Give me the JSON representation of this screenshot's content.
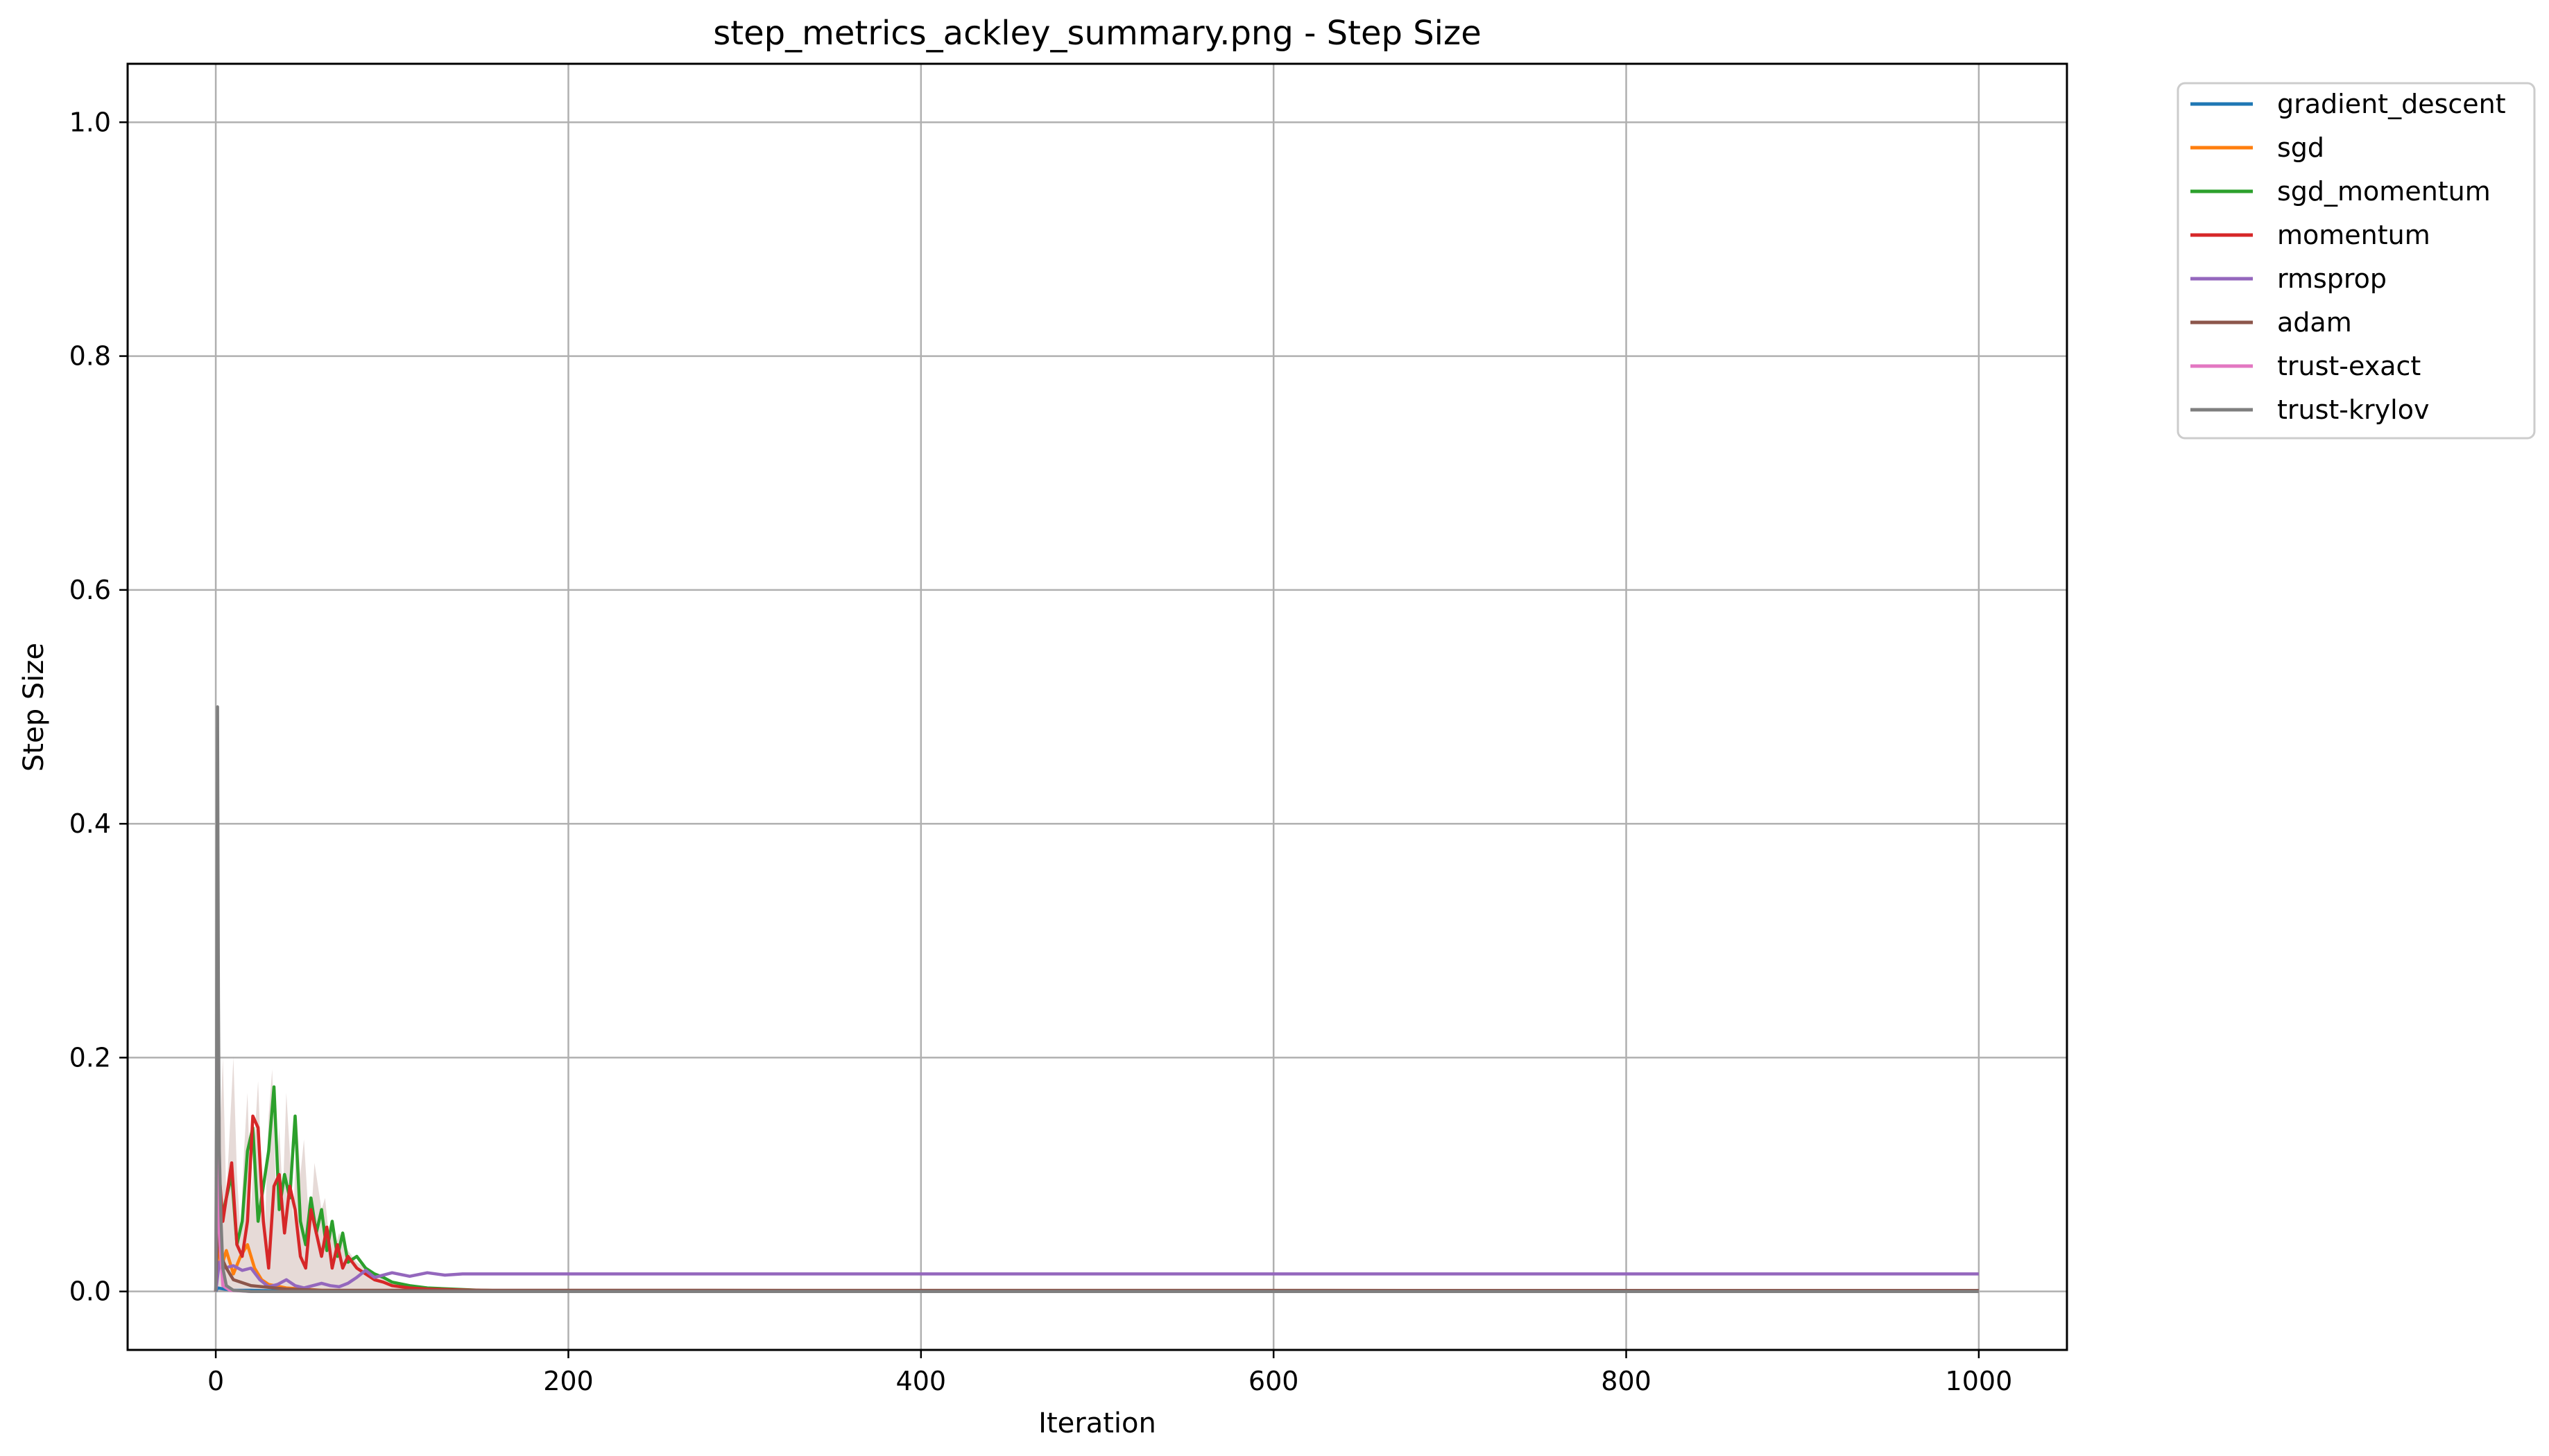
{
  "chart_data": {
    "type": "line",
    "title": "step_metrics_ackley_summary.png - Step Size",
    "xlabel": "Iteration",
    "ylabel": "Step Size",
    "xlim": [
      -50,
      1050
    ],
    "ylim": [
      -0.05,
      1.05
    ],
    "xticks": [
      0,
      200,
      400,
      600,
      800,
      1000
    ],
    "yticks": [
      0.0,
      0.2,
      0.4,
      0.6,
      0.8,
      1.0
    ],
    "xtick_labels": [
      "0",
      "200",
      "400",
      "600",
      "800",
      "1000"
    ],
    "ytick_labels": [
      "0.0",
      "0.2",
      "0.4",
      "0.6",
      "0.8",
      "1.0"
    ],
    "grid": true,
    "legend_position": "outside-top-right",
    "series": [
      {
        "name": "gradient_descent",
        "color": "#1f77b4",
        "x": [
          0,
          1,
          5,
          10,
          20,
          50,
          100,
          1000
        ],
        "y": [
          0.0,
          0.003,
          0.002,
          0.001,
          0.001,
          0.0,
          0.0,
          0.0
        ]
      },
      {
        "name": "sgd",
        "color": "#ff7f0e",
        "x": [
          0,
          1,
          3,
          6,
          10,
          14,
          18,
          22,
          26,
          30,
          40,
          60,
          100,
          1000
        ],
        "y": [
          0.0,
          0.05,
          0.02,
          0.035,
          0.015,
          0.03,
          0.04,
          0.02,
          0.01,
          0.006,
          0.003,
          0.001,
          0.0,
          0.0
        ]
      },
      {
        "name": "sgd_momentum",
        "color": "#2ca02c",
        "x": [
          0,
          1,
          3,
          6,
          9,
          12,
          15,
          18,
          21,
          24,
          27,
          30,
          33,
          36,
          39,
          42,
          45,
          48,
          51,
          54,
          57,
          60,
          63,
          66,
          69,
          72,
          75,
          80,
          85,
          90,
          95,
          100,
          110,
          120,
          150,
          200,
          1000
        ],
        "y": [
          0.0,
          0.09,
          0.06,
          0.08,
          0.1,
          0.04,
          0.06,
          0.12,
          0.14,
          0.06,
          0.09,
          0.12,
          0.175,
          0.07,
          0.1,
          0.08,
          0.15,
          0.06,
          0.04,
          0.08,
          0.05,
          0.07,
          0.035,
          0.06,
          0.03,
          0.05,
          0.025,
          0.03,
          0.02,
          0.015,
          0.012,
          0.008,
          0.005,
          0.003,
          0.001,
          0.0,
          0.0
        ]
      },
      {
        "name": "momentum",
        "color": "#d62728",
        "x": [
          0,
          2,
          4,
          6,
          9,
          12,
          15,
          18,
          21,
          24,
          27,
          30,
          33,
          36,
          39,
          42,
          45,
          48,
          51,
          54,
          57,
          60,
          63,
          66,
          69,
          72,
          75,
          80,
          85,
          90,
          95,
          100,
          110,
          120,
          150,
          200,
          1000
        ],
        "y": [
          0.0,
          0.1,
          0.06,
          0.08,
          0.11,
          0.04,
          0.03,
          0.06,
          0.15,
          0.14,
          0.06,
          0.02,
          0.09,
          0.1,
          0.05,
          0.09,
          0.07,
          0.03,
          0.02,
          0.07,
          0.05,
          0.03,
          0.055,
          0.02,
          0.04,
          0.02,
          0.03,
          0.02,
          0.015,
          0.01,
          0.008,
          0.005,
          0.003,
          0.002,
          0.001,
          0.0,
          0.0
        ]
      },
      {
        "name": "rmsprop",
        "color": "#9467bd",
        "x": [
          0,
          2,
          5,
          10,
          15,
          20,
          25,
          30,
          35,
          40,
          45,
          50,
          55,
          60,
          65,
          70,
          75,
          80,
          85,
          90,
          95,
          100,
          110,
          120,
          130,
          140,
          160,
          200,
          400,
          600,
          800,
          1000
        ],
        "y": [
          0.0,
          0.025,
          0.02,
          0.022,
          0.018,
          0.02,
          0.01,
          0.004,
          0.006,
          0.01,
          0.005,
          0.003,
          0.005,
          0.007,
          0.005,
          0.004,
          0.007,
          0.012,
          0.018,
          0.012,
          0.014,
          0.016,
          0.013,
          0.016,
          0.014,
          0.015,
          0.015,
          0.015,
          0.015,
          0.015,
          0.015,
          0.015
        ]
      },
      {
        "name": "adam",
        "color": "#8c564b",
        "x": [
          0,
          1,
          3,
          6,
          10,
          20,
          40,
          60,
          100,
          1000
        ],
        "y": [
          0.0,
          0.06,
          0.03,
          0.02,
          0.01,
          0.005,
          0.002,
          0.001,
          0.001,
          0.0008
        ]
      },
      {
        "name": "trust-exact",
        "color": "#e377c2",
        "x": [
          0,
          1,
          2,
          4,
          8,
          20,
          50,
          1000
        ],
        "y": [
          0.0,
          0.3,
          0.05,
          0.005,
          0.001,
          0.0,
          0.0,
          0.0
        ]
      },
      {
        "name": "trust-krylov",
        "color": "#7f7f7f",
        "x": [
          0,
          0.5,
          1,
          1.5,
          2,
          3,
          4,
          6,
          10,
          20,
          50,
          1000
        ],
        "y": [
          0.0,
          0.2,
          0.5,
          0.25,
          0.12,
          0.06,
          0.02,
          0.005,
          0.001,
          0.0,
          0.0,
          0.0
        ]
      }
    ],
    "shaded_bands": [
      {
        "series": "adam",
        "color": "#8c564b",
        "x": [
          0,
          2,
          4,
          6,
          8,
          10,
          12,
          14,
          16,
          18,
          20,
          22,
          24,
          26,
          28,
          30,
          32,
          34,
          36,
          38,
          40,
          42,
          44,
          46,
          48,
          50,
          52,
          54,
          56,
          58,
          60,
          62,
          64,
          66,
          68,
          70,
          75,
          80,
          90,
          100,
          110,
          120
        ],
        "upper": [
          0.0,
          0.12,
          0.2,
          0.08,
          0.14,
          0.2,
          0.1,
          0.05,
          0.12,
          0.17,
          0.07,
          0.13,
          0.18,
          0.1,
          0.06,
          0.15,
          0.19,
          0.09,
          0.14,
          0.08,
          0.17,
          0.12,
          0.06,
          0.15,
          0.1,
          0.13,
          0.08,
          0.06,
          0.11,
          0.09,
          0.07,
          0.08,
          0.05,
          0.06,
          0.04,
          0.05,
          0.035,
          0.025,
          0.015,
          0.008,
          0.004,
          0.002
        ],
        "lower": [
          0.0,
          0.0,
          0.0,
          0.0,
          0.0,
          0.0,
          0.0,
          0.0,
          0.0,
          0.0,
          0.0,
          0.0,
          0.0,
          0.0,
          0.0,
          0.0,
          0.0,
          0.0,
          0.0,
          0.0,
          0.0,
          0.0,
          0.0,
          0.0,
          0.0,
          0.0,
          0.0,
          0.0,
          0.0,
          0.0,
          0.0,
          0.0,
          0.0,
          0.0,
          0.0,
          0.0,
          0.0,
          0.0,
          0.0,
          0.0,
          0.0,
          0.0
        ]
      }
    ]
  }
}
